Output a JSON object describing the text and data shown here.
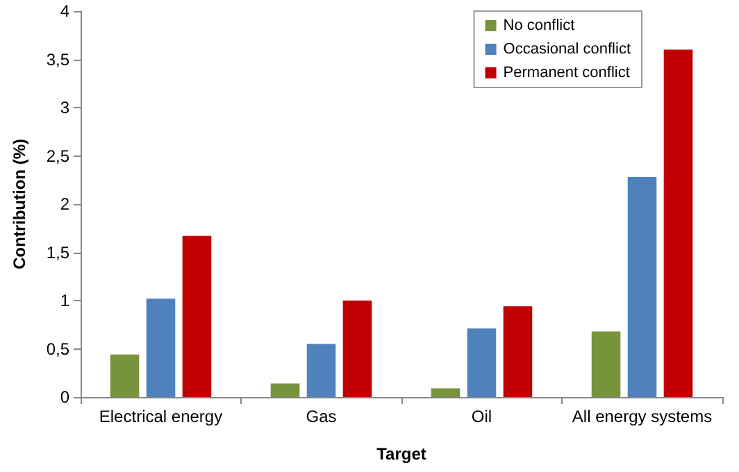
{
  "chart_data": {
    "type": "bar",
    "xlabel": "Target",
    "ylabel": "Contribution (%)",
    "categories": [
      "Electrical energy",
      "Gas",
      "Oil",
      "All energy systems"
    ],
    "series": [
      {
        "name": "No conflict",
        "color": "#77933c",
        "values": [
          0.44,
          0.14,
          0.09,
          0.68
        ]
      },
      {
        "name": "Occasional conflict",
        "color": "#4f81bd",
        "values": [
          1.02,
          0.55,
          0.71,
          2.28
        ]
      },
      {
        "name": "Permanent conflict",
        "color": "#c00000",
        "values": [
          1.67,
          1.0,
          0.94,
          3.6
        ]
      }
    ],
    "ylim": [
      0,
      4
    ],
    "yticks": [
      0,
      {
        "value": 0.5,
        "label": "0,5"
      },
      1,
      {
        "value": 1.5,
        "label": "1,5"
      },
      2,
      {
        "value": 2.5,
        "label": "2,5"
      },
      3,
      {
        "value": 3.5,
        "label": "3,5"
      },
      4
    ],
    "grid": false,
    "legend": "top right"
  }
}
